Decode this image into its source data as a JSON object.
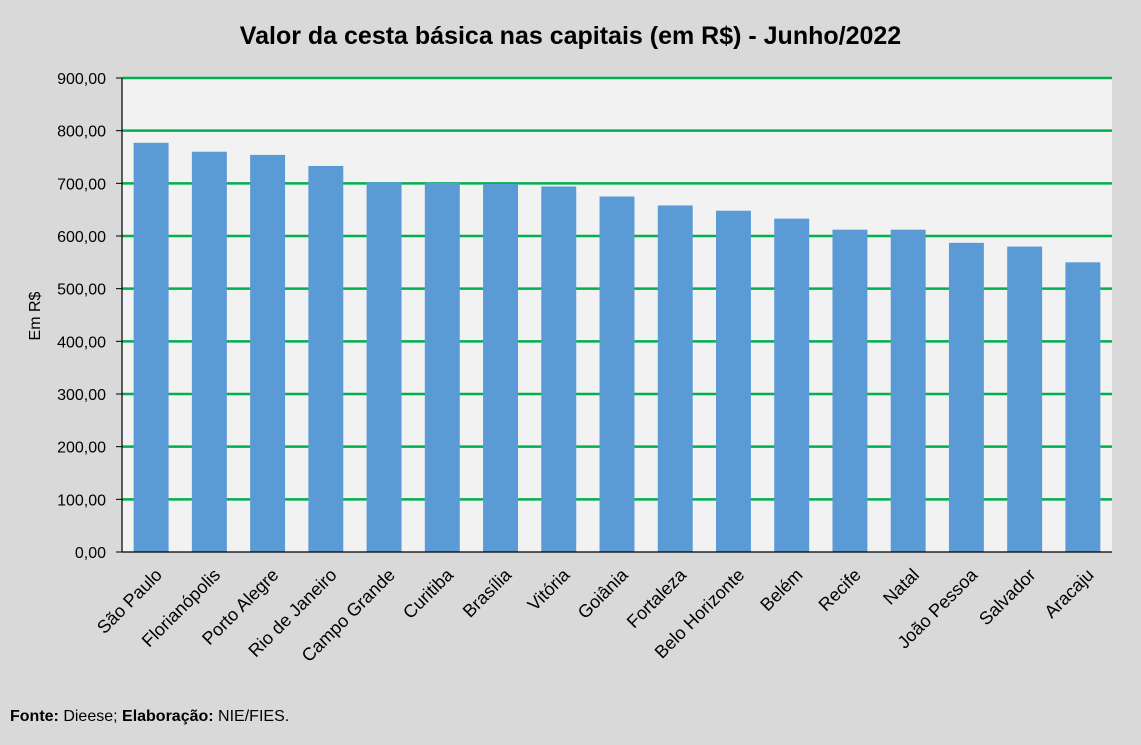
{
  "chart_data": {
    "type": "bar",
    "title": "Valor da cesta básica nas capitais (em R$) - Junho/2022",
    "xlabel": "",
    "ylabel": "Em R$",
    "ylim": [
      0,
      900
    ],
    "yticks": [
      "0,00",
      "100,00",
      "200,00",
      "300,00",
      "400,00",
      "500,00",
      "600,00",
      "700,00",
      "800,00",
      "900,00"
    ],
    "categories": [
      "São Paulo",
      "Florianópolis",
      "Porto Alegre",
      "Rio de Janeiro",
      "Campo Grande",
      "Curitiba",
      "Brasília",
      "Vitória",
      "Goiânia",
      "Fortaleza",
      "Belo Horizonte",
      "Belém",
      "Recife",
      "Natal",
      "João Pessoa",
      "Salvador",
      "Aracaju"
    ],
    "values": [
      777,
      760,
      754,
      733,
      702,
      701,
      699,
      694,
      675,
      658,
      648,
      633,
      612,
      612,
      587,
      580,
      550
    ],
    "grid": true,
    "colors": {
      "bar": "#5b9bd5",
      "grid": "#00b050",
      "plot_bg": "#f2f2f2",
      "page_bg": "#d9d9d9"
    }
  },
  "footer": {
    "source_label": "Fonte:",
    "source_text": " Dieese; ",
    "elab_label": "Elaboração:",
    "elab_text": " NIE/FIES."
  }
}
